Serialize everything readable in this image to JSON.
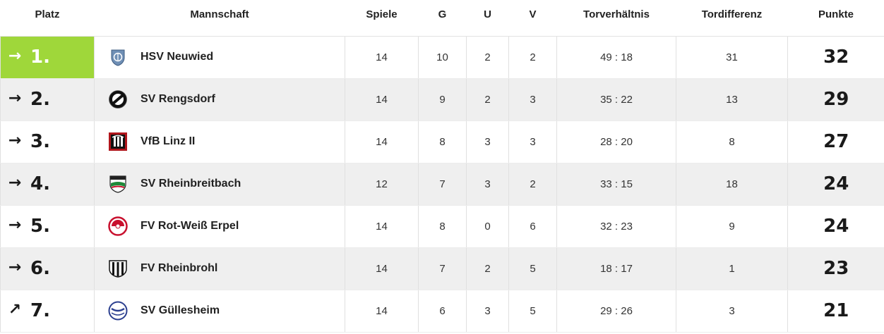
{
  "headers": {
    "platz": "Platz",
    "mannschaft": "Mannschaft",
    "spiele": "Spiele",
    "g": "G",
    "u": "U",
    "v": "V",
    "torverhaeltnis": "Torverhältnis",
    "tordifferenz": "Tordifferenz",
    "punkte": "Punkte"
  },
  "rows": [
    {
      "trend_icon": "arrow-right-icon",
      "trend": "→",
      "rank": "1.",
      "team": "HSV Neuwied",
      "crest_icon": "hsv-neuwied-crest-icon",
      "spiele": "14",
      "g": "10",
      "u": "2",
      "v": "2",
      "tore": "49 : 18",
      "diff": "31",
      "punkte": "32"
    },
    {
      "trend_icon": "arrow-right-icon",
      "trend": "→",
      "rank": "2.",
      "team": "SV Rengsdorf",
      "crest_icon": "sv-rengsdorf-crest-icon",
      "spiele": "14",
      "g": "9",
      "u": "2",
      "v": "3",
      "tore": "35 : 22",
      "diff": "13",
      "punkte": "29"
    },
    {
      "trend_icon": "arrow-right-icon",
      "trend": "→",
      "rank": "3.",
      "team": "VfB Linz II",
      "crest_icon": "vfb-linz-crest-icon",
      "spiele": "14",
      "g": "8",
      "u": "3",
      "v": "3",
      "tore": "28 : 20",
      "diff": "8",
      "punkte": "27"
    },
    {
      "trend_icon": "arrow-right-icon",
      "trend": "→",
      "rank": "4.",
      "team": "SV Rheinbreitbach",
      "crest_icon": "sv-rheinbreitbach-crest-icon",
      "spiele": "12",
      "g": "7",
      "u": "3",
      "v": "2",
      "tore": "33 : 15",
      "diff": "18",
      "punkte": "24"
    },
    {
      "trend_icon": "arrow-right-icon",
      "trend": "→",
      "rank": "5.",
      "team": "FV Rot-Weiß Erpel",
      "crest_icon": "fv-rot-weiss-erpel-crest-icon",
      "spiele": "14",
      "g": "8",
      "u": "0",
      "v": "6",
      "tore": "32 : 23",
      "diff": "9",
      "punkte": "24"
    },
    {
      "trend_icon": "arrow-right-icon",
      "trend": "→",
      "rank": "6.",
      "team": "FV Rheinbrohl",
      "crest_icon": "fv-rheinbrohl-crest-icon",
      "spiele": "14",
      "g": "7",
      "u": "2",
      "v": "5",
      "tore": "18 : 17",
      "diff": "1",
      "punkte": "23"
    },
    {
      "trend_icon": "arrow-up-right-icon",
      "trend": "↗",
      "rank": "7.",
      "team": "SV Güllesheim",
      "crest_icon": "sv-guellesheim-crest-icon",
      "spiele": "14",
      "g": "6",
      "u": "3",
      "v": "5",
      "tore": "29 : 26",
      "diff": "3",
      "punkte": "21"
    }
  ],
  "colors": {
    "leader_highlight": "#9fd73a",
    "alt_row": "#efefef"
  }
}
